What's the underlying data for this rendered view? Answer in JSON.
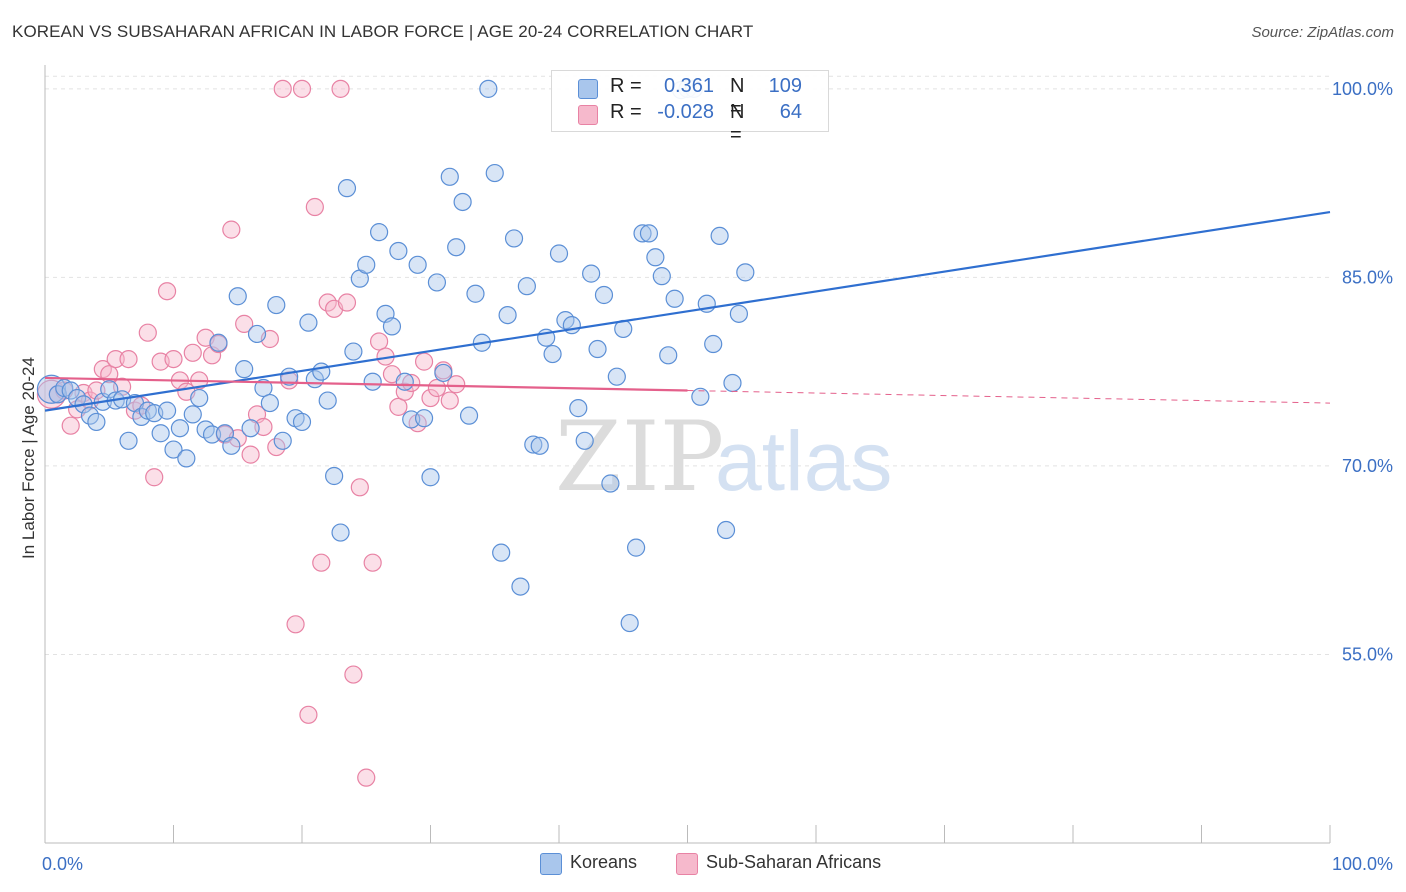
{
  "header": {
    "title": "KOREAN VS SUBSAHARAN AFRICAN IN LABOR FORCE | AGE 20-24 CORRELATION CHART",
    "source": "Source: ZipAtlas.com"
  },
  "watermark": {
    "zip": "ZIP",
    "atlas": "atlas"
  },
  "legend_top": {
    "rows": [
      {
        "r_label": "R = ",
        "r_value": "0.361",
        "n_label": "N = ",
        "n_value": "109"
      },
      {
        "r_label": "R = ",
        "r_value": "-0.028",
        "n_label": "N = ",
        "n_value": "64"
      }
    ]
  },
  "legend_bottom": {
    "items": [
      "Koreans",
      "Sub-Saharan Africans"
    ]
  },
  "colors": {
    "koreans_fill": "#a9c6ec",
    "koreans_stroke": "#5b8fd6",
    "koreans_line": "#2f6fd0",
    "africans_fill": "#f6b9cc",
    "africans_stroke": "#e882a4",
    "africans_line": "#e4608b",
    "tick_label": "#3b6fc4",
    "grid": "#e2e2e2"
  },
  "chart_data": {
    "type": "scatter",
    "title": "KOREAN VS SUBSAHARAN AFRICAN IN LABOR FORCE | AGE 20-24 CORRELATION CHART",
    "xlabel": "",
    "ylabel": "In Labor Force | Age 20-24",
    "xlim": [
      0,
      100
    ],
    "ylim": [
      40,
      101.5
    ],
    "x_tick_labels": [
      "0.0%",
      "100.0%"
    ],
    "y_ticks": [
      55,
      70,
      85,
      100
    ],
    "y_tick_labels": [
      "55.0%",
      "70.0%",
      "85.0%",
      "100.0%"
    ],
    "grid": true,
    "legend_position": "top-center",
    "series": [
      {
        "name": "Koreans",
        "r": 0.361,
        "n": 109,
        "trend": {
          "x": [
            0,
            100
          ],
          "y": [
            74.4,
            90.2
          ],
          "dashed_from": null
        },
        "points": [
          [
            0.5,
            76.1
          ],
          [
            1,
            75.7
          ],
          [
            1.5,
            76.2
          ],
          [
            2,
            76
          ],
          [
            2.5,
            75.4
          ],
          [
            3,
            74.9
          ],
          [
            3.5,
            74
          ],
          [
            4,
            73.5
          ],
          [
            4.5,
            75.1
          ],
          [
            5,
            76.1
          ],
          [
            5.5,
            75.2
          ],
          [
            6,
            75.3
          ],
          [
            6.5,
            72
          ],
          [
            7,
            75
          ],
          [
            7.5,
            73.9
          ],
          [
            8,
            74.4
          ],
          [
            8.5,
            74.2
          ],
          [
            9,
            72.6
          ],
          [
            9.5,
            74.4
          ],
          [
            10,
            71.3
          ],
          [
            10.5,
            73
          ],
          [
            11,
            70.6
          ],
          [
            11.5,
            74.1
          ],
          [
            12,
            75.4
          ],
          [
            12.5,
            72.9
          ],
          [
            13,
            72.5
          ],
          [
            13.5,
            79.8
          ],
          [
            14,
            72.6
          ],
          [
            14.5,
            71.6
          ],
          [
            15,
            83.5
          ],
          [
            15.5,
            77.7
          ],
          [
            16,
            73
          ],
          [
            16.5,
            80.5
          ],
          [
            17,
            76.2
          ],
          [
            17.5,
            75
          ],
          [
            18,
            82.8
          ],
          [
            18.5,
            72
          ],
          [
            19,
            77.1
          ],
          [
            19.5,
            73.8
          ],
          [
            20,
            73.5
          ],
          [
            20.5,
            81.4
          ],
          [
            21,
            76.9
          ],
          [
            21.5,
            77.5
          ],
          [
            22,
            75.2
          ],
          [
            22.5,
            69.2
          ],
          [
            23,
            64.7
          ],
          [
            23.5,
            92.1
          ],
          [
            24,
            79.1
          ],
          [
            24.5,
            84.9
          ],
          [
            25,
            86
          ],
          [
            25.5,
            76.7
          ],
          [
            26,
            88.6
          ],
          [
            26.5,
            82.1
          ],
          [
            27,
            81.1
          ],
          [
            27.5,
            87.1
          ],
          [
            28,
            76.7
          ],
          [
            28.5,
            73.7
          ],
          [
            29,
            86
          ],
          [
            29.5,
            73.8
          ],
          [
            30,
            69.1
          ],
          [
            30.5,
            84.6
          ],
          [
            31,
            77.4
          ],
          [
            31.5,
            93
          ],
          [
            32,
            87.4
          ],
          [
            32.5,
            91
          ],
          [
            33,
            74
          ],
          [
            33.5,
            83.7
          ],
          [
            34,
            79.8
          ],
          [
            34.5,
            100
          ],
          [
            35,
            93.3
          ],
          [
            35.5,
            63.1
          ],
          [
            36,
            82
          ],
          [
            36.5,
            88.1
          ],
          [
            37,
            60.4
          ],
          [
            37.5,
            84.3
          ],
          [
            38,
            71.7
          ],
          [
            38.5,
            71.6
          ],
          [
            39,
            80.2
          ],
          [
            39.5,
            78.9
          ],
          [
            40,
            86.9
          ],
          [
            40.5,
            81.6
          ],
          [
            41,
            81.2
          ],
          [
            41.5,
            74.6
          ],
          [
            42,
            72
          ],
          [
            42.5,
            85.3
          ],
          [
            43,
            79.3
          ],
          [
            43.5,
            83.6
          ],
          [
            44,
            68.6
          ],
          [
            44.5,
            77.1
          ],
          [
            45,
            80.9
          ],
          [
            45.5,
            57.5
          ],
          [
            46,
            63.5
          ],
          [
            46.5,
            88.5
          ],
          [
            47,
            88.5
          ],
          [
            47.5,
            86.6
          ],
          [
            48,
            85.1
          ],
          [
            48.5,
            78.8
          ],
          [
            49,
            83.3
          ],
          [
            49.5,
            99.9
          ],
          [
            50,
            100
          ],
          [
            50.5,
            100
          ],
          [
            51,
            75.5
          ],
          [
            51.5,
            82.9
          ],
          [
            52,
            79.7
          ],
          [
            52.5,
            88.3
          ],
          [
            53,
            64.9
          ],
          [
            53.5,
            76.6
          ],
          [
            54,
            82.1
          ],
          [
            54.5,
            85.4
          ]
        ]
      },
      {
        "name": "Sub-Saharan Africans",
        "r": -0.028,
        "n": 64,
        "trend": {
          "x": [
            0,
            100
          ],
          "y": [
            77.0,
            75.0
          ],
          "dashed_from": 50
        },
        "points": [
          [
            0.5,
            75.7
          ],
          [
            1,
            75.7
          ],
          [
            1.5,
            76
          ],
          [
            2,
            73.2
          ],
          [
            2.5,
            74.5
          ],
          [
            3,
            75.8
          ],
          [
            3.5,
            75.2
          ],
          [
            4,
            76
          ],
          [
            4.5,
            77.7
          ],
          [
            5,
            77.3
          ],
          [
            5.5,
            78.5
          ],
          [
            6,
            76.3
          ],
          [
            6.5,
            78.5
          ],
          [
            7,
            74.4
          ],
          [
            7.5,
            74.8
          ],
          [
            8,
            80.6
          ],
          [
            8.5,
            69.1
          ],
          [
            9,
            78.3
          ],
          [
            9.5,
            83.9
          ],
          [
            10,
            78.5
          ],
          [
            10.5,
            76.8
          ],
          [
            11,
            75.9
          ],
          [
            11.5,
            79
          ],
          [
            12,
            76.8
          ],
          [
            12.5,
            80.2
          ],
          [
            13,
            78.8
          ],
          [
            13.5,
            79.7
          ],
          [
            14,
            72.5
          ],
          [
            14.5,
            88.8
          ],
          [
            15,
            72.2
          ],
          [
            15.5,
            81.3
          ],
          [
            16,
            70.9
          ],
          [
            16.5,
            74.1
          ],
          [
            17,
            73.1
          ],
          [
            17.5,
            80.1
          ],
          [
            18,
            71.5
          ],
          [
            18.5,
            100
          ],
          [
            19,
            76.8
          ],
          [
            19.5,
            57.4
          ],
          [
            20,
            100
          ],
          [
            20.5,
            50.2
          ],
          [
            21,
            90.6
          ],
          [
            21.5,
            62.3
          ],
          [
            22,
            83
          ],
          [
            22.5,
            82.5
          ],
          [
            23,
            100
          ],
          [
            23.5,
            83
          ],
          [
            24,
            53.4
          ],
          [
            24.5,
            68.3
          ],
          [
            25,
            45.2
          ],
          [
            25.5,
            62.3
          ],
          [
            26,
            79.9
          ],
          [
            26.5,
            78.7
          ],
          [
            27,
            77.3
          ],
          [
            27.5,
            74.7
          ],
          [
            28,
            75.9
          ],
          [
            28.5,
            76.6
          ],
          [
            29,
            73.4
          ],
          [
            29.5,
            78.3
          ],
          [
            30,
            75.4
          ],
          [
            30.5,
            76.2
          ],
          [
            31,
            77.6
          ],
          [
            31.5,
            75.2
          ],
          [
            32,
            76.5
          ]
        ]
      }
    ]
  }
}
